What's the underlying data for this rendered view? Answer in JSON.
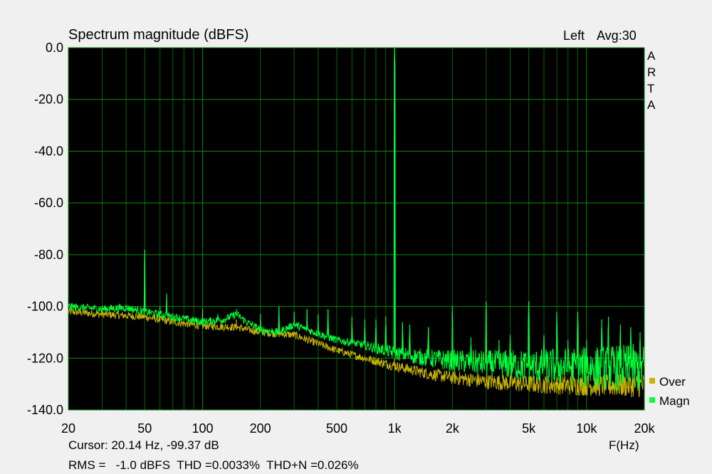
{
  "header": {
    "title": "Spectrum magnitude (dBFS)",
    "channel": "Left",
    "averaging": "Avg:30"
  },
  "brand_letters": [
    "A",
    "R",
    "T",
    "A"
  ],
  "footer": {
    "cursor": "Cursor: 20.14 Hz, -99.37 dB",
    "x_unit": "F(Hz)",
    "stats": "RMS =   -1.0 dBFS  THD =0.0033%  THD+N =0.026%"
  },
  "colors": {
    "plot_bg": "#000000",
    "grid": "#0a8f0a",
    "magn": "#00ff3c",
    "over": "#c8b400",
    "stats_text": "#c00000",
    "window_bg": "#f0f0f0"
  },
  "chart_data": {
    "type": "line",
    "title": "Spectrum magnitude (dBFS)",
    "xlabel": "F(Hz)",
    "ylabel": "",
    "x_scale": "log",
    "xlim": [
      20,
      20000
    ],
    "ylim": [
      -140,
      0
    ],
    "grid": true,
    "legend_position": "bottom-right",
    "x_ticks": [
      {
        "value": 20,
        "label": "20"
      },
      {
        "value": 50,
        "label": "50"
      },
      {
        "value": 100,
        "label": "100"
      },
      {
        "value": 200,
        "label": "200"
      },
      {
        "value": 500,
        "label": "500"
      },
      {
        "value": 1000,
        "label": "1k"
      },
      {
        "value": 2000,
        "label": "2k"
      },
      {
        "value": 5000,
        "label": "5k"
      },
      {
        "value": 10000,
        "label": "10k"
      },
      {
        "value": 20000,
        "label": "20k"
      }
    ],
    "y_ticks": [
      {
        "value": 0,
        "label": "0.0"
      },
      {
        "value": -20,
        "label": "-20.0"
      },
      {
        "value": -40,
        "label": "-40.0"
      },
      {
        "value": -60,
        "label": "-60.0"
      },
      {
        "value": -80,
        "label": "-80.0"
      },
      {
        "value": -100,
        "label": "-100.0"
      },
      {
        "value": -120,
        "label": "-120.0"
      },
      {
        "value": -140,
        "label": "-140.0"
      }
    ],
    "series": [
      {
        "name": "Over",
        "color": "#c8b400",
        "floor": [
          [
            20,
            -102
          ],
          [
            30,
            -103
          ],
          [
            50,
            -104
          ],
          [
            70,
            -106
          ],
          [
            100,
            -107.5
          ],
          [
            150,
            -108
          ],
          [
            200,
            -110
          ],
          [
            300,
            -111
          ],
          [
            500,
            -117
          ],
          [
            700,
            -120
          ],
          [
            1000,
            -123
          ],
          [
            1500,
            -126
          ],
          [
            2000,
            -127.5
          ],
          [
            3000,
            -129
          ],
          [
            5000,
            -130
          ],
          [
            10000,
            -130.5
          ],
          [
            20000,
            -130.5
          ]
        ],
        "peaks": [
          [
            50,
            -104
          ],
          [
            150,
            -105
          ],
          [
            1000,
            -120
          ]
        ]
      },
      {
        "name": "Magn",
        "color": "#00ff3c",
        "floor": [
          [
            20,
            -100
          ],
          [
            30,
            -101
          ],
          [
            40,
            -100.5
          ],
          [
            50,
            -102
          ],
          [
            70,
            -104
          ],
          [
            100,
            -106
          ],
          [
            130,
            -105
          ],
          [
            150,
            -103
          ],
          [
            170,
            -106
          ],
          [
            200,
            -109
          ],
          [
            250,
            -110
          ],
          [
            300,
            -107
          ],
          [
            350,
            -109
          ],
          [
            500,
            -113
          ],
          [
            700,
            -115
          ],
          [
            1000,
            -118
          ],
          [
            1500,
            -120
          ],
          [
            2000,
            -121
          ],
          [
            3000,
            -122
          ],
          [
            5000,
            -123
          ],
          [
            10000,
            -123.5
          ],
          [
            20000,
            -124
          ]
        ],
        "peaks": [
          [
            50,
            -78
          ],
          [
            60,
            -100
          ],
          [
            65,
            -95
          ],
          [
            100,
            -101
          ],
          [
            120,
            -103
          ],
          [
            150,
            -101
          ],
          [
            200,
            -103
          ],
          [
            250,
            -100
          ],
          [
            300,
            -102
          ],
          [
            350,
            -101
          ],
          [
            400,
            -103
          ],
          [
            450,
            -101
          ],
          [
            600,
            -104
          ],
          [
            700,
            -105
          ],
          [
            800,
            -105
          ],
          [
            900,
            -104
          ],
          [
            1000,
            0
          ],
          [
            1100,
            -106
          ],
          [
            1200,
            -107
          ],
          [
            1500,
            -108
          ],
          [
            2000,
            -100
          ],
          [
            2500,
            -112
          ],
          [
            3000,
            -98
          ],
          [
            3500,
            -113
          ],
          [
            4000,
            -111
          ],
          [
            5000,
            -98
          ],
          [
            6000,
            -111
          ],
          [
            7000,
            -102
          ],
          [
            8000,
            -113
          ],
          [
            9000,
            -102
          ],
          [
            10000,
            -113
          ],
          [
            12000,
            -105
          ],
          [
            13000,
            -104
          ],
          [
            15000,
            -107
          ],
          [
            17000,
            -108
          ],
          [
            19000,
            -110
          ]
        ]
      }
    ]
  }
}
